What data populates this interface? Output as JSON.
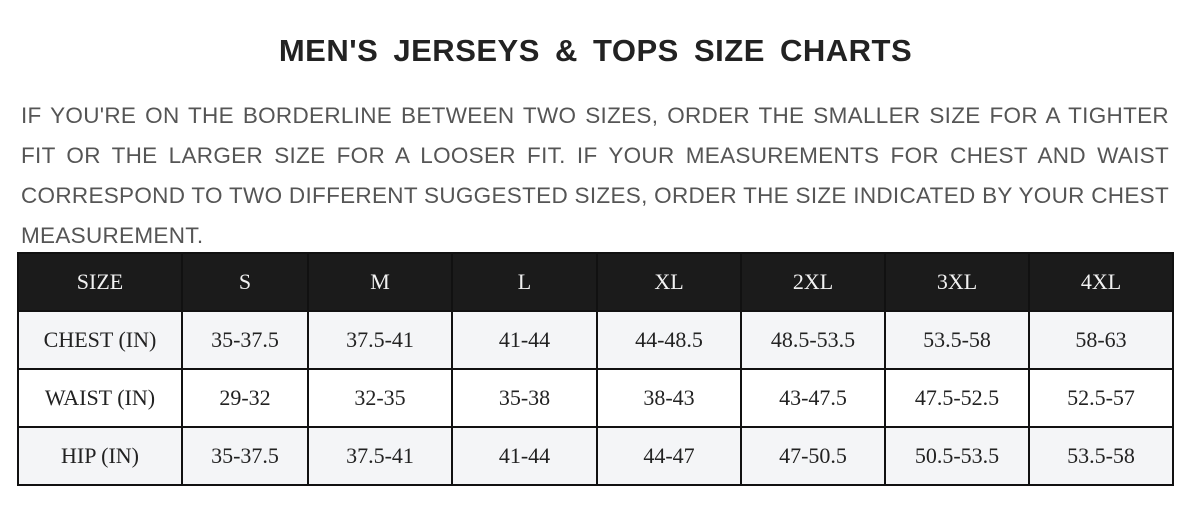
{
  "title": "MEN'S JERSEYS & TOPS SIZE CHARTS",
  "description": "IF YOU'RE ON THE BORDERLINE BETWEEN TWO SIZES, ORDER THE SMALLER SIZE FOR A TIGHTER FIT OR THE LARGER SIZE FOR A LOOSER FIT. IF YOUR MEASUREMENTS FOR CHEST AND WAIST CORRESPOND TO TWO DIFFERENT SUGGESTED SIZES, ORDER THE SIZE INDICATED BY YOUR CHEST MEASUREMENT.",
  "table": {
    "headers": [
      "SIZE",
      "S",
      "M",
      "L",
      "XL",
      "2XL",
      "3XL",
      "4XL"
    ],
    "rows": [
      [
        "CHEST (IN)",
        "35-37.5",
        "37.5-41",
        "41-44",
        "44-48.5",
        "48.5-53.5",
        "53.5-58",
        "58-63"
      ],
      [
        "WAIST (IN)",
        "29-32",
        "32-35",
        "35-38",
        "38-43",
        "43-47.5",
        "47.5-52.5",
        "52.5-57"
      ],
      [
        "HIP (IN)",
        "35-37.5",
        "37.5-41",
        "41-44",
        "44-47",
        "47-50.5",
        "50.5-53.5",
        "53.5-58"
      ]
    ]
  },
  "colors": {
    "header_bg": "#1b1b1b",
    "alt_row_bg": "#f4f5f7",
    "text": "#222222",
    "description_text": "#555555"
  }
}
